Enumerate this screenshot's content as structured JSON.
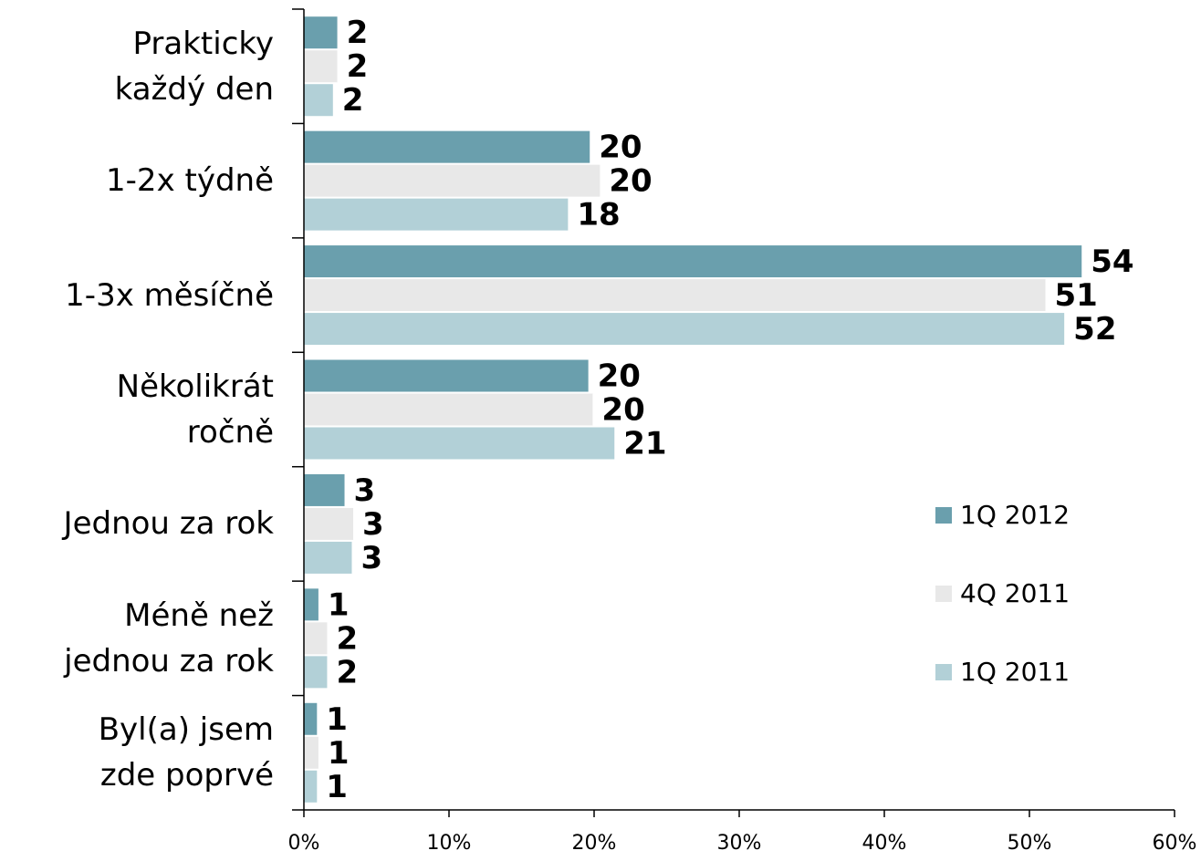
{
  "chart_data": {
    "type": "hbar",
    "categories": [
      "Prakticky\nkaždý den",
      "1-2x týdně",
      "1-3x měsíčně",
      "Několikrát\nročně",
      "Jednou za rok",
      "Méně než\njednou za rok",
      "Byl(a) jsem\nzde poprvé"
    ],
    "series": [
      {
        "name": "1Q 2012",
        "color": "#6a9fad",
        "values": [
          2.3,
          19.7,
          53.6,
          19.6,
          2.8,
          1.0,
          0.9
        ],
        "value_labels": [
          "2",
          "20",
          "54",
          "20",
          "3",
          "1",
          "1"
        ]
      },
      {
        "name": "4Q 2011",
        "color": "#e8e8e8",
        "values": [
          2.3,
          20.4,
          51.1,
          19.9,
          3.4,
          1.6,
          1.0
        ],
        "value_labels": [
          "2",
          "20",
          "51",
          "20",
          "3",
          "2",
          "1"
        ]
      },
      {
        "name": "1Q 2011",
        "color": "#b2d0d7",
        "values": [
          2.0,
          18.2,
          52.4,
          21.4,
          3.3,
          1.6,
          0.9
        ],
        "value_labels": [
          "2",
          "18",
          "52",
          "21",
          "3",
          "2",
          "1"
        ]
      }
    ],
    "xlim": [
      0,
      60
    ],
    "xticks": [
      {
        "value": 0,
        "label": "0%"
      },
      {
        "value": 10,
        "label": "10%"
      },
      {
        "value": 20,
        "label": "20%"
      },
      {
        "value": 30,
        "label": "30%"
      },
      {
        "value": 40,
        "label": "40%"
      },
      {
        "value": 50,
        "label": "50%"
      },
      {
        "value": 60,
        "label": "60%"
      }
    ],
    "grid": false,
    "legend_position": "right"
  }
}
